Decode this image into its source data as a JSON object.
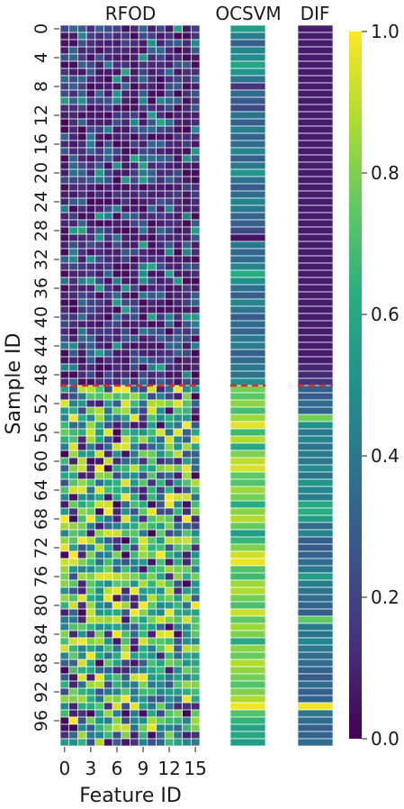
{
  "chart_data": {
    "type": "heatmap",
    "panels": [
      {
        "title": "RFOD",
        "type": "heatmap"
      },
      {
        "title": "OCSVM",
        "type": "heatmap"
      },
      {
        "title": "DIF",
        "type": "heatmap"
      }
    ],
    "xlabel": "Feature ID",
    "ylabel": "Sample ID",
    "x_ticks": [
      "0",
      "3",
      "6",
      "9",
      "12",
      "15"
    ],
    "y_ticks": [
      "0",
      "4",
      "8",
      "12",
      "16",
      "20",
      "24",
      "28",
      "32",
      "36",
      "40",
      "44",
      "48",
      "52",
      "56",
      "60",
      "64",
      "68",
      "72",
      "76",
      "80",
      "84",
      "88",
      "92",
      "96"
    ],
    "n_samples": 100,
    "n_features": 16,
    "separator_row": 50,
    "separator_color": "#e32b2b",
    "colorbar": {
      "ticks": [
        "0.0",
        "0.2",
        "0.4",
        "0.6",
        "0.8",
        "1.0"
      ],
      "range": [
        0,
        1
      ],
      "colormap": "viridis"
    },
    "ocsvm_scores": [
      0.55,
      0.42,
      0.3,
      0.45,
      0.48,
      0.58,
      0.52,
      0.38,
      0.15,
      0.35,
      0.28,
      0.22,
      0.38,
      0.3,
      0.42,
      0.32,
      0.35,
      0.45,
      0.3,
      0.4,
      0.52,
      0.38,
      0.28,
      0.35,
      0.45,
      0.4,
      0.32,
      0.3,
      0.22,
      0.05,
      0.4,
      0.32,
      0.36,
      0.45,
      0.62,
      0.5,
      0.36,
      0.3,
      0.45,
      0.38,
      0.28,
      0.35,
      0.32,
      0.4,
      0.42,
      0.3,
      0.35,
      0.4,
      0.38,
      0.48,
      0.78,
      0.74,
      0.82,
      0.7,
      0.85,
      0.96,
      0.68,
      0.88,
      0.6,
      0.8,
      0.9,
      0.94,
      0.75,
      0.72,
      0.85,
      0.78,
      0.62,
      0.82,
      0.88,
      0.76,
      0.55,
      0.66,
      0.8,
      0.93,
      0.97,
      0.72,
      0.68,
      0.85,
      0.88,
      0.78,
      0.7,
      0.92,
      0.75,
      0.85,
      0.8,
      0.6,
      0.82,
      0.76,
      0.88,
      0.83,
      0.78,
      0.72,
      0.8,
      0.88,
      0.98,
      0.72,
      0.65,
      0.58,
      0.6,
      0.55
    ],
    "dif_scores": [
      0.08,
      0.08,
      0.08,
      0.08,
      0.08,
      0.08,
      0.08,
      0.08,
      0.08,
      0.08,
      0.08,
      0.08,
      0.08,
      0.08,
      0.08,
      0.08,
      0.08,
      0.08,
      0.08,
      0.08,
      0.08,
      0.08,
      0.08,
      0.08,
      0.08,
      0.08,
      0.08,
      0.08,
      0.08,
      0.08,
      0.08,
      0.08,
      0.08,
      0.08,
      0.08,
      0.08,
      0.08,
      0.08,
      0.08,
      0.08,
      0.08,
      0.08,
      0.08,
      0.08,
      0.08,
      0.08,
      0.08,
      0.1,
      0.12,
      0.15,
      0.3,
      0.28,
      0.35,
      0.32,
      0.78,
      0.5,
      0.4,
      0.45,
      0.38,
      0.42,
      0.4,
      0.48,
      0.38,
      0.52,
      0.45,
      0.42,
      0.6,
      0.62,
      0.55,
      0.35,
      0.45,
      0.3,
      0.28,
      0.32,
      0.35,
      0.4,
      0.55,
      0.42,
      0.38,
      0.35,
      0.32,
      0.3,
      0.75,
      0.42,
      0.38,
      0.45,
      0.4,
      0.35,
      0.35,
      0.32,
      0.28,
      0.35,
      0.3,
      0.32,
      0.98,
      0.4,
      0.35,
      0.3,
      0.32,
      0.35
    ]
  }
}
